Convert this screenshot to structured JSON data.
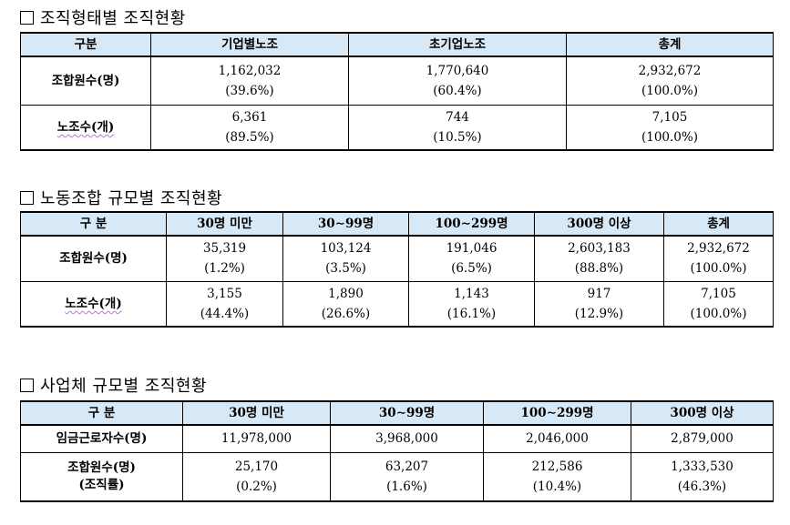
{
  "section1": {
    "title": "조직형태별 조직현황",
    "headers": [
      "구분",
      "기업별노조",
      "초기업노조",
      "총계"
    ],
    "rows": [
      {
        "label": "조합원수(명)",
        "cells": [
          {
            "value": "1,162,032",
            "pct": "(39.6%)"
          },
          {
            "value": "1,770,640",
            "pct": "(60.4%)"
          },
          {
            "value": "2,932,672",
            "pct": "(100.0%)"
          }
        ]
      },
      {
        "label": "노조수(개)",
        "cells": [
          {
            "value": "6,361",
            "pct": "(89.5%)"
          },
          {
            "value": "744",
            "pct": "(10.5%)"
          },
          {
            "value": "7,105",
            "pct": "(100.0%)"
          }
        ]
      }
    ]
  },
  "section2": {
    "title": "노동조합 규모별 조직현황",
    "headers": [
      "구 분",
      "30명 미만",
      "30∼99명",
      "100∼299명",
      "300명 이상",
      "총계"
    ],
    "rows": [
      {
        "label": "조합원수(명)",
        "cells": [
          {
            "value": "35,319",
            "pct": "(1.2%)"
          },
          {
            "value": "103,124",
            "pct": "(3.5%)"
          },
          {
            "value": "191,046",
            "pct": "(6.5%)"
          },
          {
            "value": "2,603,183",
            "pct": "(88.8%)"
          },
          {
            "value": "2,932,672",
            "pct": "(100.0%)"
          }
        ]
      },
      {
        "label": "노조수(개)",
        "cells": [
          {
            "value": "3,155",
            "pct": "(44.4%)"
          },
          {
            "value": "1,890",
            "pct": "(26.6%)"
          },
          {
            "value": "1,143",
            "pct": "(16.1%)"
          },
          {
            "value": "917",
            "pct": "(12.9%)"
          },
          {
            "value": "7,105",
            "pct": "(100.0%)"
          }
        ]
      }
    ]
  },
  "section3": {
    "title": "사업체 규모별 조직현황",
    "headers": [
      "구 분",
      "30명 미만",
      "30∼99명",
      "100∼299명",
      "300명 이상"
    ],
    "rows": [
      {
        "label": "임금근로자수(명)",
        "cells": [
          {
            "value": "11,978,000"
          },
          {
            "value": "3,968,000"
          },
          {
            "value": "2,046,000"
          },
          {
            "value": "2,879,000"
          }
        ]
      },
      {
        "label": "조합원수(명)",
        "label2": "(조직률)",
        "cells": [
          {
            "value": "25,170",
            "pct": "(0.2%)"
          },
          {
            "value": "63,207",
            "pct": "(1.6%)"
          },
          {
            "value": "212,586",
            "pct": "(10.4%)"
          },
          {
            "value": "1,333,530",
            "pct": "(46.3%)"
          }
        ]
      }
    ]
  }
}
